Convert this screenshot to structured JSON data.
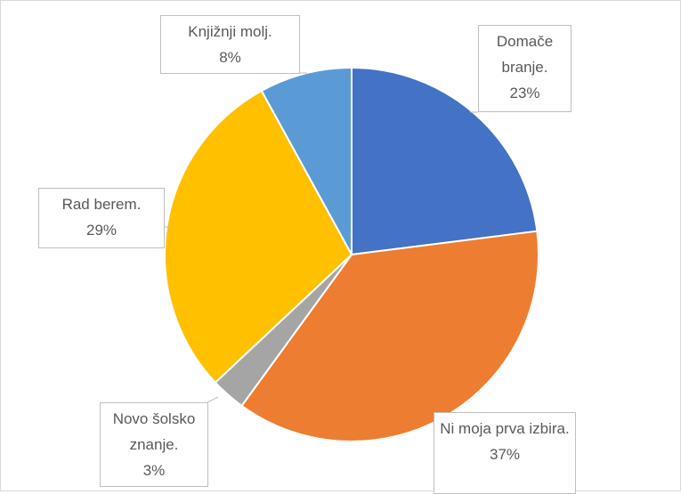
{
  "chart_data": {
    "type": "pie",
    "categories": [
      "Domače branje.",
      "Ni moja prva izbira.",
      "Novo šolsko znanje.",
      "Rad berem.",
      "Knjižnji molj."
    ],
    "values": [
      23,
      37,
      3,
      29,
      8
    ],
    "value_labels": [
      "23%",
      "37%",
      "3%",
      "29%",
      "8%"
    ],
    "colors": [
      "#4472c4",
      "#ed7d31",
      "#a5a5a5",
      "#ffc000",
      "#5b9bd5"
    ]
  }
}
